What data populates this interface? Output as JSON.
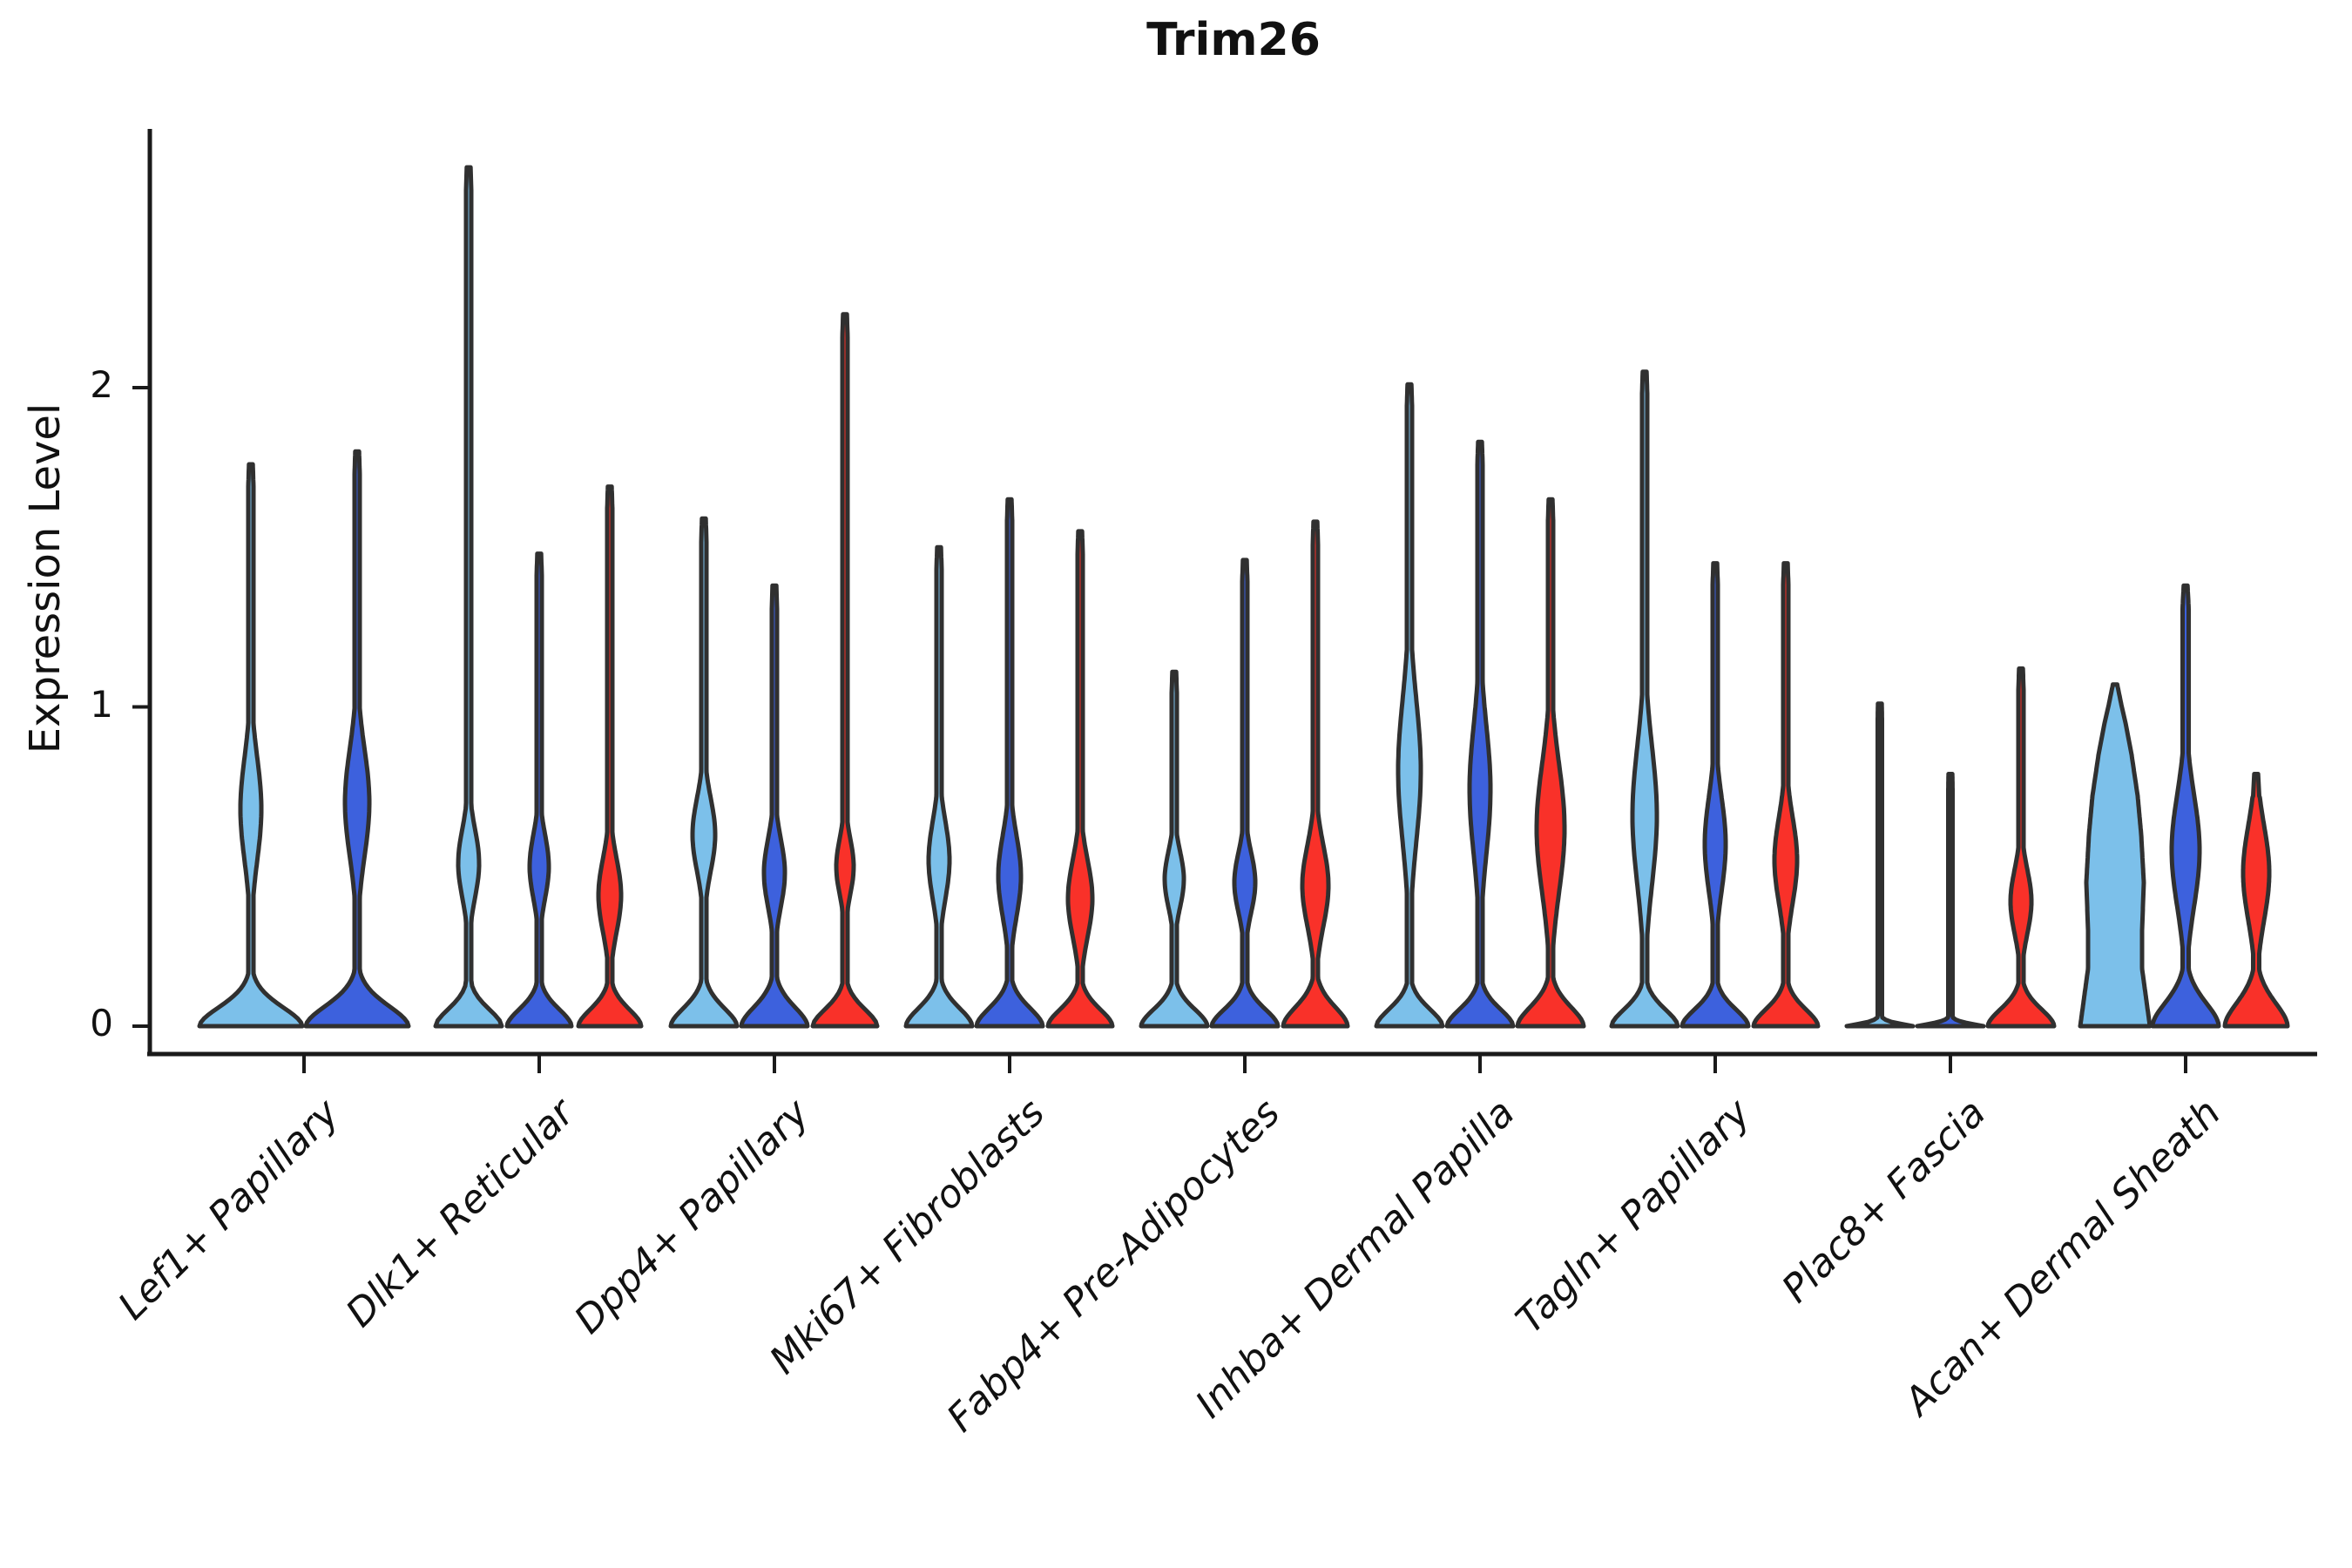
{
  "chart_data": {
    "type": "violin",
    "title": "Trim26",
    "ylabel": "Expression Level",
    "xlabel": "",
    "ylim": [
      0,
      2.81
    ],
    "yticks": [
      0,
      1,
      2
    ],
    "ytick_labels": [
      "0",
      "1",
      "2"
    ],
    "grid": false,
    "legend": "none",
    "series_colors": {
      "light_blue": "#7CC0EA",
      "dark_blue": "#3D61DD",
      "red": "#F93129"
    },
    "outline_color": "#303030",
    "axis_color": "#1a1a1a",
    "categories": [
      "Lef1+ Papillary",
      "Dlk1+ Reticular",
      "Dpp4+ Papillary",
      "Mki67+ Fibroblasts",
      "Fabp4+ Pre-Adipocytes",
      "Inhba+ Dermal Papilla",
      "Tagln+ Papillary",
      "Plac8+ Fascia",
      "Acan+ Dermal Sheath"
    ],
    "groups": [
      {
        "category": "Lef1+ Papillary",
        "violins": [
          {
            "series": "light_blue",
            "max": 1.76,
            "bulge_center": 0.68,
            "bulge_extent": 0.24,
            "bulge_hw": 12,
            "base_hw": 59,
            "base_scale": 0.09,
            "stem_hw": 3
          },
          {
            "series": "dark_blue",
            "max": 1.8,
            "bulge_center": 0.7,
            "bulge_extent": 0.25,
            "bulge_hw": 14,
            "base_hw": 59,
            "base_scale": 0.095,
            "stem_hw": 3
          }
        ]
      },
      {
        "category": "Dlk1+ Reticular",
        "violins": [
          {
            "series": "light_blue",
            "max": 2.69,
            "bulge_center": 0.51,
            "bulge_extent": 0.16,
            "bulge_hw": 12,
            "base_hw": 38,
            "base_scale": 0.08,
            "stem_hw": 3
          },
          {
            "series": "dark_blue",
            "max": 1.48,
            "bulge_center": 0.5,
            "bulge_extent": 0.15,
            "bulge_hw": 11,
            "base_hw": 37,
            "base_scale": 0.08,
            "stem_hw": 3
          },
          {
            "series": "red",
            "max": 1.69,
            "bulge_center": 0.41,
            "bulge_extent": 0.17,
            "bulge_hw": 13,
            "base_hw": 36,
            "base_scale": 0.08,
            "stem_hw": 3
          }
        ]
      },
      {
        "category": "Dpp4+ Papillary",
        "violins": [
          {
            "series": "light_blue",
            "max": 1.59,
            "bulge_center": 0.6,
            "bulge_extent": 0.17,
            "bulge_hw": 13,
            "base_hw": 38,
            "base_scale": 0.085,
            "stem_hw": 3
          },
          {
            "series": "dark_blue",
            "max": 1.38,
            "bulge_center": 0.48,
            "bulge_extent": 0.16,
            "bulge_hw": 12,
            "base_hw": 38,
            "base_scale": 0.09,
            "stem_hw": 3
          },
          {
            "series": "red",
            "max": 2.23,
            "bulge_center": 0.5,
            "bulge_extent": 0.13,
            "bulge_hw": 10,
            "base_hw": 37,
            "base_scale": 0.08,
            "stem_hw": 3
          }
        ]
      },
      {
        "category": "Mki67+ Fibroblasts",
        "violins": [
          {
            "series": "light_blue",
            "max": 1.5,
            "bulge_center": 0.52,
            "bulge_extent": 0.18,
            "bulge_hw": 12,
            "base_hw": 38,
            "base_scale": 0.085,
            "stem_hw": 3
          },
          {
            "series": "dark_blue",
            "max": 1.65,
            "bulge_center": 0.47,
            "bulge_extent": 0.19,
            "bulge_hw": 13,
            "base_hw": 38,
            "base_scale": 0.085,
            "stem_hw": 3
          },
          {
            "series": "red",
            "max": 1.55,
            "bulge_center": 0.4,
            "bulge_extent": 0.18,
            "bulge_hw": 14,
            "base_hw": 37,
            "base_scale": 0.08,
            "stem_hw": 3
          }
        ]
      },
      {
        "category": "Fabp4+ Pre-Adipocytes",
        "violins": [
          {
            "series": "light_blue",
            "max": 1.11,
            "bulge_center": 0.46,
            "bulge_extent": 0.13,
            "bulge_hw": 11,
            "base_hw": 38,
            "base_scale": 0.08,
            "stem_hw": 3
          },
          {
            "series": "dark_blue",
            "max": 1.46,
            "bulge_center": 0.45,
            "bulge_extent": 0.14,
            "bulge_hw": 12,
            "base_hw": 38,
            "base_scale": 0.08,
            "stem_hw": 3
          },
          {
            "series": "red",
            "max": 1.58,
            "bulge_center": 0.44,
            "bulge_extent": 0.19,
            "bulge_hw": 15,
            "base_hw": 37,
            "base_scale": 0.09,
            "stem_hw": 3
          }
        ]
      },
      {
        "category": "Inhba+ Dermal Papilla",
        "violins": [
          {
            "series": "light_blue",
            "max": 2.01,
            "bulge_center": 0.8,
            "bulge_extent": 0.33,
            "bulge_hw": 13,
            "base_hw": 38,
            "base_scale": 0.08,
            "stem_hw": 3
          },
          {
            "series": "dark_blue",
            "max": 1.83,
            "bulge_center": 0.74,
            "bulge_extent": 0.3,
            "bulge_hw": 12,
            "base_hw": 38,
            "base_scale": 0.08,
            "stem_hw": 3
          },
          {
            "series": "red",
            "max": 1.65,
            "bulge_center": 0.62,
            "bulge_extent": 0.3,
            "bulge_hw": 16,
            "base_hw": 38,
            "base_scale": 0.09,
            "stem_hw": 3
          }
        ]
      },
      {
        "category": "Tagln+ Papillary",
        "violins": [
          {
            "series": "light_blue",
            "max": 2.05,
            "bulge_center": 0.66,
            "bulge_extent": 0.32,
            "bulge_hw": 14,
            "base_hw": 38,
            "base_scale": 0.08,
            "stem_hw": 3
          },
          {
            "series": "dark_blue",
            "max": 1.45,
            "bulge_center": 0.57,
            "bulge_extent": 0.22,
            "bulge_hw": 12,
            "base_hw": 38,
            "base_scale": 0.08,
            "stem_hw": 3
          },
          {
            "series": "red",
            "max": 1.45,
            "bulge_center": 0.52,
            "bulge_extent": 0.2,
            "bulge_hw": 13,
            "base_hw": 37,
            "base_scale": 0.08,
            "stem_hw": 3
          }
        ]
      },
      {
        "category": "Plac8+ Fascia",
        "violins": [
          {
            "series": "light_blue",
            "max": 1.01,
            "flat_base": true,
            "bulge_hw": 0,
            "base_hw": 38,
            "stem_hw": 2.5
          },
          {
            "series": "dark_blue",
            "max": 0.79,
            "flat_base": true,
            "bulge_hw": 0,
            "base_hw": 38,
            "stem_hw": 2.5
          },
          {
            "series": "red",
            "max": 1.12,
            "bulge_center": 0.39,
            "bulge_extent": 0.15,
            "bulge_hw": 12,
            "base_hw": 38,
            "base_scale": 0.08,
            "stem_hw": 3
          }
        ]
      },
      {
        "category": "Acan+ Dermal Sheath",
        "violins": [
          {
            "series": "light_blue",
            "max": 1.07,
            "profile": [
              [
                0,
                40
              ],
              [
                0.08,
                36
              ],
              [
                0.18,
                31
              ],
              [
                0.3,
                31
              ],
              [
                0.45,
                33
              ],
              [
                0.6,
                30
              ],
              [
                0.72,
                26
              ],
              [
                0.85,
                19
              ],
              [
                0.95,
                12
              ],
              [
                1.01,
                7
              ],
              [
                1.07,
                2.5
              ]
            ]
          },
          {
            "series": "dark_blue",
            "max": 1.38,
            "bulge_center": 0.55,
            "bulge_extent": 0.26,
            "bulge_hw": 16,
            "base_hw": 38,
            "base_scale": 0.11,
            "stem_hw": 3.5
          },
          {
            "series": "red",
            "max": 0.79,
            "bulge_center": 0.48,
            "bulge_extent": 0.22,
            "bulge_hw": 15,
            "base_hw": 36,
            "base_scale": 0.11,
            "stem_hw": 3.5
          }
        ]
      }
    ]
  }
}
